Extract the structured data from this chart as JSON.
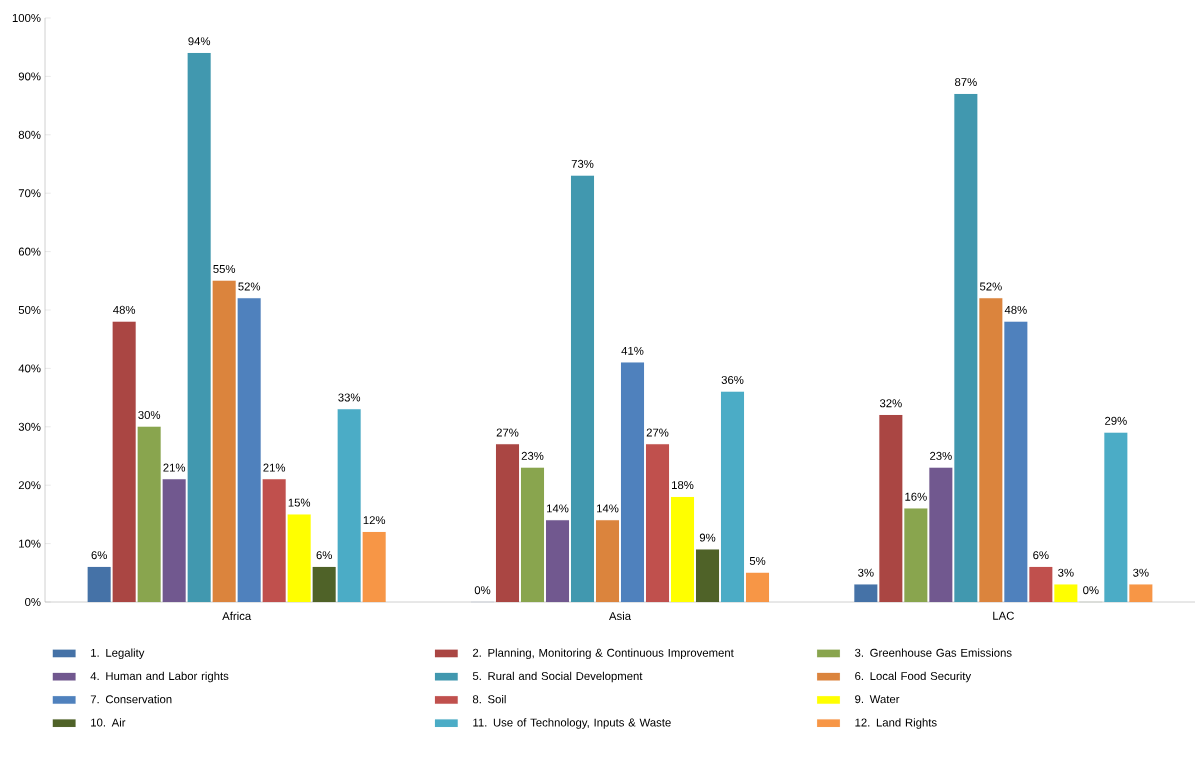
{
  "chart_data": {
    "type": "bar",
    "categories": [
      "Africa",
      "Asia",
      "LAC"
    ],
    "series": [
      {
        "name": "1. Legality",
        "color": "#4572a7",
        "values": [
          6,
          0,
          3
        ],
        "value_labels": [
          "6%",
          "0%",
          "3%"
        ]
      },
      {
        "name": "2. Planning, Monitoring & Continuous Improvement",
        "color": "#aa4643",
        "values": [
          48,
          27,
          32
        ],
        "value_labels": [
          "48%",
          "27%",
          "32%"
        ]
      },
      {
        "name": "3. Greenhouse Gas Emissions",
        "color": "#89a54e",
        "values": [
          30,
          23,
          16
        ],
        "value_labels": [
          "30%",
          "23%",
          "16%"
        ]
      },
      {
        "name": "4. Human and Labor rights",
        "color": "#71588f",
        "values": [
          21,
          14,
          23
        ],
        "value_labels": [
          "21%",
          "14%",
          "23%"
        ]
      },
      {
        "name": "5. Rural and Social Development",
        "color": "#4198af",
        "values": [
          94,
          73,
          87
        ],
        "value_labels": [
          "94%",
          "73%",
          "87%"
        ]
      },
      {
        "name": "6. Local Food Security",
        "color": "#db843d",
        "values": [
          55,
          14,
          52
        ],
        "value_labels": [
          "55%",
          "14%",
          "52%"
        ]
      },
      {
        "name": "7. Conservation",
        "color": "#4f81bd",
        "values": [
          52,
          41,
          48
        ],
        "value_labels": [
          "52%",
          "41%",
          "48%"
        ]
      },
      {
        "name": "8. Soil",
        "color": "#c0504d",
        "values": [
          21,
          27,
          6
        ],
        "value_labels": [
          "21%",
          "27%",
          "6%"
        ]
      },
      {
        "name": "9. Water",
        "color": "#ffff00",
        "values": [
          15,
          18,
          3
        ],
        "value_labels": [
          "15%",
          "18%",
          "3%"
        ]
      },
      {
        "name": "10. Air",
        "color": "#4f6228",
        "values": [
          6,
          9,
          0
        ],
        "value_labels": [
          "6%",
          "9%",
          "0%"
        ]
      },
      {
        "name": "11. Use of Technology, Inputs & Waste",
        "color": "#4bacc6",
        "values": [
          33,
          36,
          29
        ],
        "value_labels": [
          "33%",
          "36%",
          "29%"
        ]
      },
      {
        "name": "12. Land Rights",
        "color": "#f79646",
        "values": [
          12,
          5,
          3
        ],
        "value_labels": [
          "12%",
          "5%",
          "3%"
        ]
      }
    ],
    "ylim": [
      0,
      100
    ],
    "yticks": [
      {
        "value": 0,
        "label": "0%"
      },
      {
        "value": 10,
        "label": "10%"
      },
      {
        "value": 20,
        "label": "20%"
      },
      {
        "value": 30,
        "label": "30%"
      },
      {
        "value": 40,
        "label": "40%"
      },
      {
        "value": 50,
        "label": "50%"
      },
      {
        "value": 60,
        "label": "60%"
      },
      {
        "value": 70,
        "label": "70%"
      },
      {
        "value": 80,
        "label": "80%"
      },
      {
        "value": 90,
        "label": "90%"
      },
      {
        "value": 100,
        "label": "100%"
      }
    ],
    "legend": "bottom"
  }
}
